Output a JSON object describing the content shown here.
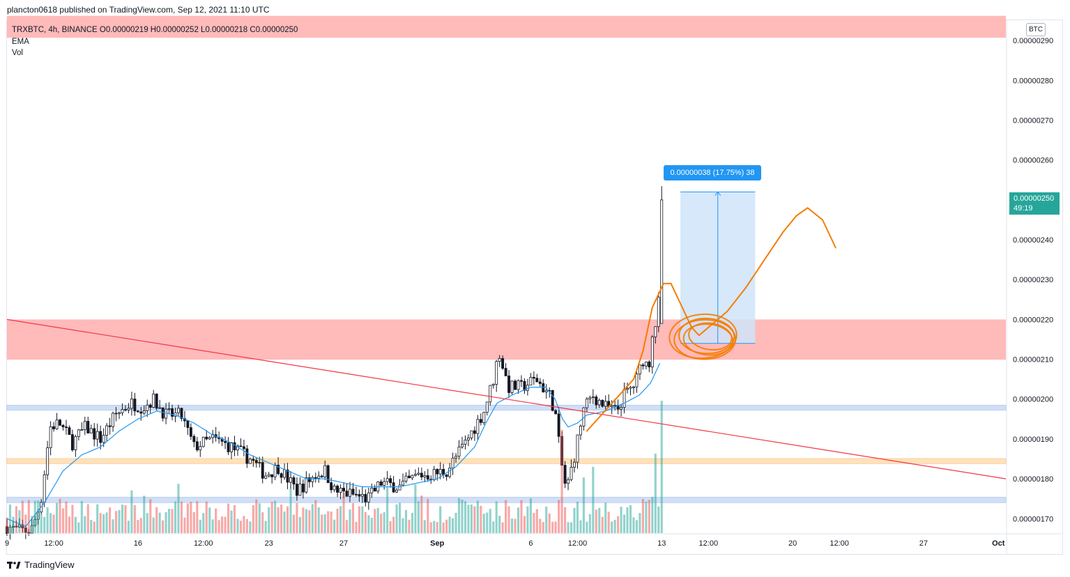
{
  "header": {
    "published": "plancton0618 published on TradingView.com, Sep 12, 2021 11:10 UTC"
  },
  "legend": {
    "symbol_line": "TRXBTC, 4h, BINANCE  O0.00000219  H0.00000252  L0.00000218  C0.00000250",
    "ema": "EMA",
    "vol": "Vol"
  },
  "currency_badge": "BTC",
  "last_price": {
    "value": "0.00000250",
    "countdown": "49:19"
  },
  "measure_label": "0.00000038 (17.75%) 38",
  "footer": {
    "brand": "TradingView"
  },
  "colors": {
    "up": "#26a69a",
    "down": "#ef5350",
    "candle": "#131722",
    "ema": "#2196f3",
    "trendline": "#f23645",
    "drawing": "#f57c00",
    "resistance_zone": "#ffb3b3",
    "support_zone_blue": "#c8daf5",
    "support_zone_orange": "#ffdcb0",
    "measure_box": "#cfe4f9"
  },
  "chart_data": {
    "type": "candlestick",
    "symbol": "TRXBTC",
    "interval": "4h",
    "exchange": "BINANCE",
    "ohlc_last": {
      "open": 2.19e-06,
      "high": 2.52e-06,
      "low": 2.18e-06,
      "close": 2.5e-06
    },
    "y_ticks": [
      "0.00000290",
      "0.00000280",
      "0.00000270",
      "0.00000260",
      "0.00000250",
      "0.00000240",
      "0.00000230",
      "0.00000220",
      "0.00000210",
      "0.00000200",
      "0.00000190",
      "0.00000180",
      "0.00000170"
    ],
    "y_tick_values": [
      2.9,
      2.8,
      2.7,
      2.6,
      2.5,
      2.4,
      2.3,
      2.2,
      2.1,
      2.0,
      1.9,
      1.8,
      1.7
    ],
    "y_unit_scale": 1e-06,
    "ylim": [
      1.662,
      2.951
    ],
    "x_ticks": [
      {
        "label": "9",
        "day": 9
      },
      {
        "label": "12:00",
        "day": 11.5
      },
      {
        "label": "16",
        "day": 16
      },
      {
        "label": "12:00",
        "day": 19.5
      },
      {
        "label": "23",
        "day": 23
      },
      {
        "label": "27",
        "day": 27
      },
      {
        "label": "Sep",
        "day": 32
      },
      {
        "label": "6",
        "day": 37
      },
      {
        "label": "12:00",
        "day": 39.5
      },
      {
        "label": "13",
        "day": 44
      },
      {
        "label": "12:00",
        "day": 46.5
      },
      {
        "label": "20",
        "day": 51
      },
      {
        "label": "12:00",
        "day": 53.5
      },
      {
        "label": "27",
        "day": 58
      },
      {
        "label": "Oct",
        "day": 62
      }
    ],
    "xlim": [
      9,
      62.4
    ],
    "candle_days": [
      9.0,
      44.0
    ],
    "price_anchors": [
      [
        9.0,
        1.68
      ],
      [
        9.6,
        1.67
      ],
      [
        10.3,
        1.67
      ],
      [
        10.8,
        1.74
      ],
      [
        11.3,
        1.93
      ],
      [
        11.8,
        1.94
      ],
      [
        12.5,
        1.89
      ],
      [
        13.2,
        1.93
      ],
      [
        14.0,
        1.9
      ],
      [
        14.8,
        1.96
      ],
      [
        15.6,
        1.99
      ],
      [
        16.3,
        1.98
      ],
      [
        16.8,
        2.0
      ],
      [
        17.5,
        1.96
      ],
      [
        18.3,
        1.96
      ],
      [
        19.0,
        1.88
      ],
      [
        20.0,
        1.9
      ],
      [
        21.0,
        1.88
      ],
      [
        22.0,
        1.85
      ],
      [
        22.8,
        1.81
      ],
      [
        23.5,
        1.83
      ],
      [
        24.5,
        1.77
      ],
      [
        25.5,
        1.81
      ],
      [
        26.0,
        1.82
      ],
      [
        26.5,
        1.77
      ],
      [
        27.5,
        1.76
      ],
      [
        28.3,
        1.75
      ],
      [
        29.0,
        1.79
      ],
      [
        30.0,
        1.78
      ],
      [
        31.0,
        1.81
      ],
      [
        31.6,
        1.81
      ],
      [
        32.5,
        1.82
      ],
      [
        33.5,
        1.89
      ],
      [
        34.5,
        1.97
      ],
      [
        35.0,
        2.05
      ],
      [
        35.3,
        2.12
      ],
      [
        35.8,
        2.03
      ],
      [
        36.5,
        2.03
      ],
      [
        37.3,
        2.05
      ],
      [
        38.0,
        2.01
      ],
      [
        38.3,
        1.97
      ],
      [
        38.6,
        1.85
      ],
      [
        38.9,
        1.77
      ],
      [
        39.3,
        1.85
      ],
      [
        39.8,
        1.97
      ],
      [
        40.3,
        2.01
      ],
      [
        41.0,
        1.98
      ],
      [
        41.6,
        1.97
      ],
      [
        42.0,
        2.01
      ],
      [
        42.6,
        2.04
      ],
      [
        43.0,
        2.1
      ],
      [
        43.3,
        2.08
      ],
      [
        43.55,
        2.19
      ],
      [
        43.8,
        2.19
      ],
      [
        44.0,
        2.5
      ]
    ],
    "ema_anchors": [
      [
        9.0,
        1.7
      ],
      [
        10.0,
        1.68
      ],
      [
        11.0,
        1.74
      ],
      [
        12.0,
        1.82
      ],
      [
        13.0,
        1.86
      ],
      [
        14.0,
        1.88
      ],
      [
        15.0,
        1.92
      ],
      [
        16.0,
        1.95
      ],
      [
        17.0,
        1.97
      ],
      [
        18.0,
        1.96
      ],
      [
        19.0,
        1.94
      ],
      [
        20.0,
        1.91
      ],
      [
        21.0,
        1.89
      ],
      [
        22.0,
        1.86
      ],
      [
        23.0,
        1.84
      ],
      [
        24.0,
        1.82
      ],
      [
        25.0,
        1.8
      ],
      [
        26.0,
        1.8
      ],
      [
        27.0,
        1.79
      ],
      [
        28.0,
        1.78
      ],
      [
        29.0,
        1.78
      ],
      [
        30.0,
        1.78
      ],
      [
        31.0,
        1.79
      ],
      [
        32.0,
        1.8
      ],
      [
        33.0,
        1.83
      ],
      [
        34.0,
        1.88
      ],
      [
        34.6,
        1.94
      ],
      [
        35.2,
        1.99
      ],
      [
        36.0,
        2.01
      ],
      [
        37.0,
        2.03
      ],
      [
        37.8,
        2.03
      ],
      [
        38.3,
        2.0
      ],
      [
        38.7,
        1.95
      ],
      [
        39.0,
        1.93
      ],
      [
        39.5,
        1.94
      ],
      [
        40.0,
        1.96
      ],
      [
        41.0,
        1.97
      ],
      [
        42.0,
        1.99
      ],
      [
        42.8,
        2.01
      ],
      [
        43.4,
        2.04
      ],
      [
        44.0,
        2.1
      ]
    ],
    "volume_spikes": [
      [
        38.7,
        0.78
      ],
      [
        39.8,
        0.42
      ],
      [
        40.3,
        0.5
      ],
      [
        43.7,
        0.6
      ],
      [
        44.0,
        1.0
      ]
    ],
    "zones": [
      {
        "kind": "resistance",
        "from": 2.099,
        "to": 2.2,
        "day_from": 9,
        "day_to": 62.4
      },
      {
        "kind": "top_band",
        "from": 2.907,
        "to": 2.962,
        "day_from": 9,
        "day_to": 62.4
      },
      {
        "kind": "support_blue",
        "from": 1.972,
        "to": 1.985,
        "day_from": 9,
        "day_to": 62.4
      },
      {
        "kind": "support_orange",
        "from": 1.838,
        "to": 1.851,
        "day_from": 9,
        "day_to": 62.4
      },
      {
        "kind": "support_blue",
        "from": 1.74,
        "to": 1.754,
        "day_from": 9,
        "day_to": 62.4
      }
    ],
    "trendline": [
      [
        9.0,
        2.2
      ],
      [
        62.4,
        1.8
      ]
    ],
    "measure": {
      "day_from": 45.0,
      "day_to": 49.0,
      "from_price": 2.14,
      "to_price": 2.52,
      "change": "0.00000038",
      "percent": "17.75%",
      "bars": 38
    },
    "drawing_path": [
      [
        40.0,
        1.92
      ],
      [
        42.5,
        2.05
      ],
      [
        43.0,
        2.12
      ],
      [
        43.5,
        2.23
      ],
      [
        44.1,
        2.29
      ],
      [
        44.5,
        2.29
      ],
      [
        45.0,
        2.24
      ],
      [
        45.6,
        2.18
      ],
      [
        46.0,
        2.16
      ],
      [
        46.5,
        2.18
      ],
      [
        47.5,
        2.22
      ],
      [
        48.5,
        2.28
      ],
      [
        49.5,
        2.35
      ],
      [
        50.5,
        2.42
      ],
      [
        51.2,
        2.46
      ],
      [
        51.8,
        2.48
      ],
      [
        52.6,
        2.45
      ],
      [
        53.3,
        2.38
      ]
    ],
    "drawing_circle": {
      "day": 46.4,
      "price": 2.155,
      "rx_days": 1.8,
      "ry_price": 0.055
    }
  }
}
